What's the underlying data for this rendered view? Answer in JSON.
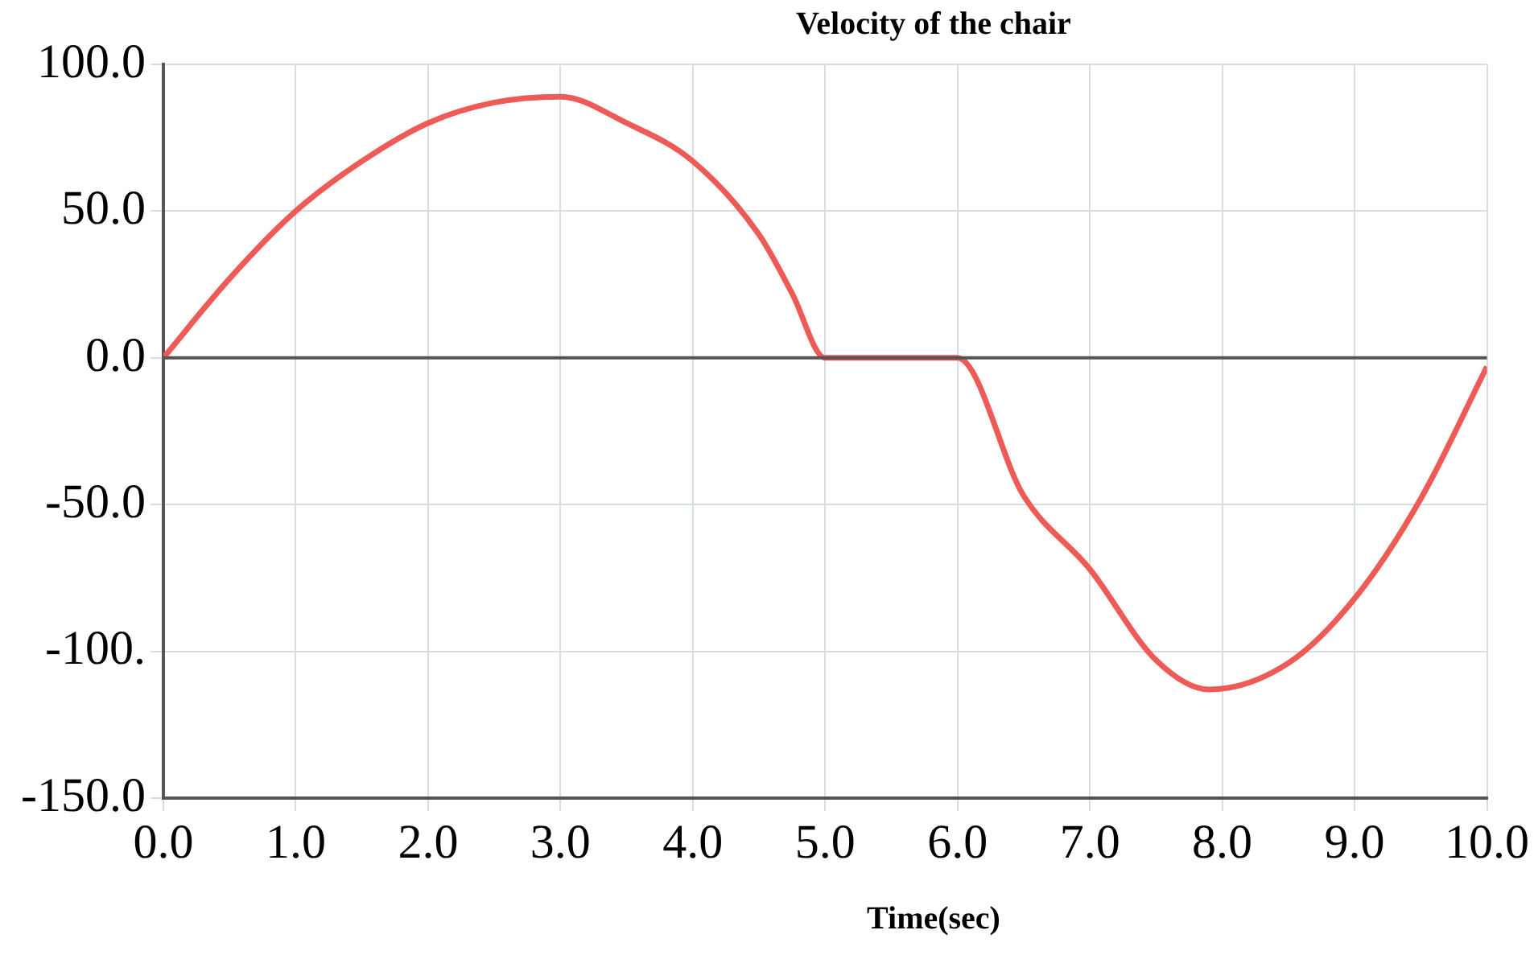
{
  "chart_data": {
    "type": "line",
    "title": "Velocity of the chair",
    "xlabel": "Time(sec)",
    "x": [
      0,
      0.5,
      1,
      1.5,
      2,
      2.5,
      3,
      3.5,
      4,
      4.5,
      4.75,
      5,
      6,
      6.5,
      7,
      7.5,
      7.9,
      8.5,
      9,
      9.5,
      10
    ],
    "series": [
      {
        "color": "#ee5a55",
        "values": [
          0,
          27,
          50,
          67,
          80,
          87,
          89,
          80,
          67,
          42,
          22,
          0,
          0,
          -47,
          -72,
          -103,
          -113,
          -104,
          -82,
          -48,
          -3
        ]
      }
    ],
    "xlim": [
      0,
      10
    ],
    "xticks": [
      {
        "value": 0,
        "label": "0.0"
      },
      {
        "value": 1,
        "label": "1.0"
      },
      {
        "value": 2,
        "label": "2.0"
      },
      {
        "value": 3,
        "label": "3.0"
      },
      {
        "value": 4,
        "label": "4.0"
      },
      {
        "value": 5,
        "label": "5.0"
      },
      {
        "value": 6,
        "label": "6.0"
      },
      {
        "value": 7,
        "label": "7.0"
      },
      {
        "value": 8,
        "label": "8.0"
      },
      {
        "value": 9,
        "label": "9.0"
      },
      {
        "value": 10,
        "label": "10.0"
      }
    ],
    "ylim": [
      -150,
      100
    ],
    "yticks": [
      {
        "value": -150,
        "label": "-150.0"
      },
      {
        "value": -100,
        "label": "-100."
      },
      {
        "value": -50,
        "label": "-50.0"
      },
      {
        "value": 0,
        "label": "0.0"
      },
      {
        "value": 50,
        "label": "50.0"
      },
      {
        "value": 100,
        "label": "100.0"
      }
    ],
    "ref_lines": [
      {
        "axis": "y",
        "value": 0,
        "color": "#555555"
      }
    ],
    "grid": true,
    "legend": false,
    "marker": "none",
    "line_style": "solid"
  }
}
